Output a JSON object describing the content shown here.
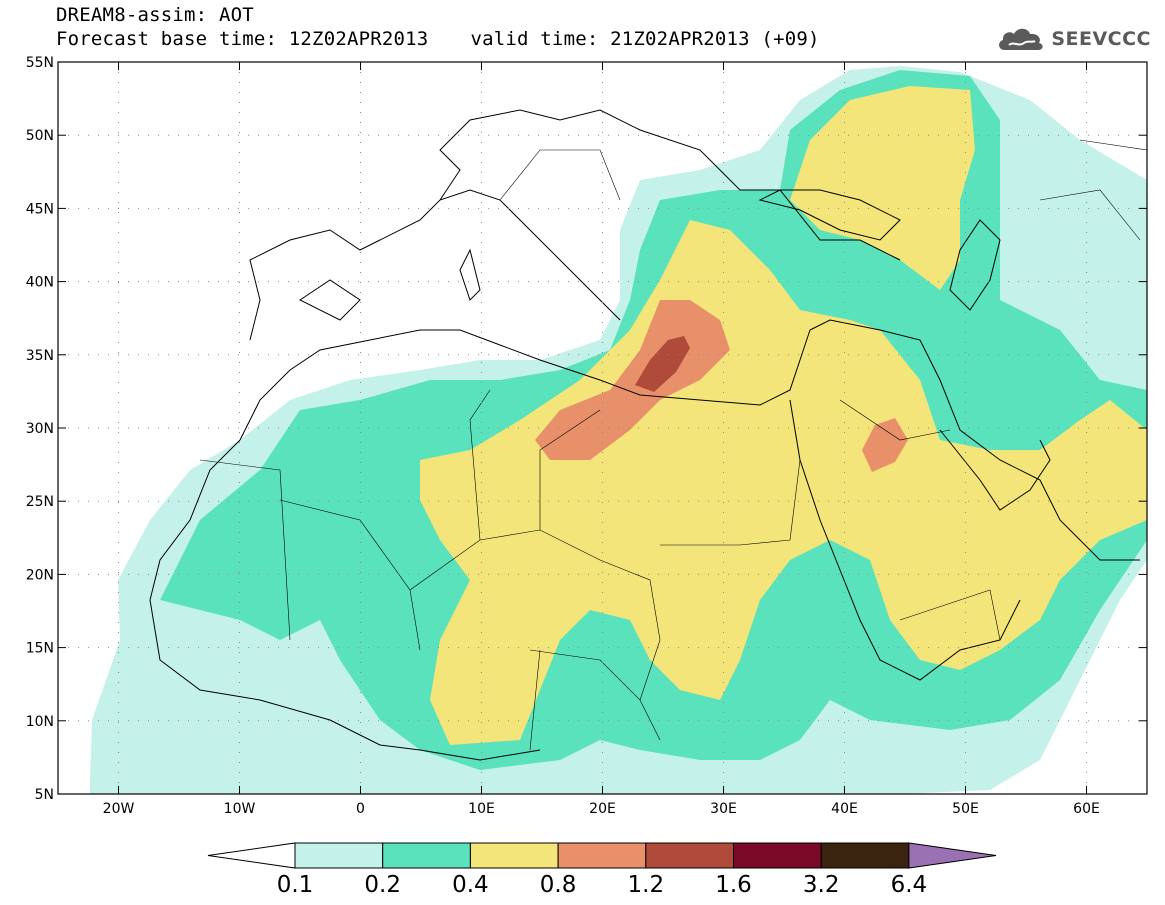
{
  "header": {
    "title_line1": "DREAM8-assim: AOT",
    "base_time": "Forecast base time: 12Z02APR2013",
    "valid_time": "valid time: 21Z02APR2013 (+09)"
  },
  "logo": {
    "text": "SEEVCCC",
    "icon": "cloud-icon",
    "color": "#5a5a5a"
  },
  "map": {
    "lon_range": [
      -25,
      65
    ],
    "lat_range": [
      5,
      55
    ],
    "lat_ticks": [
      {
        "value": 55,
        "label": "55N"
      },
      {
        "value": 50,
        "label": "50N"
      },
      {
        "value": 45,
        "label": "45N"
      },
      {
        "value": 40,
        "label": "40N"
      },
      {
        "value": 35,
        "label": "35N"
      },
      {
        "value": 30,
        "label": "30N"
      },
      {
        "value": 25,
        "label": "25N"
      },
      {
        "value": 20,
        "label": "20N"
      },
      {
        "value": 15,
        "label": "15N"
      },
      {
        "value": 10,
        "label": "10N"
      },
      {
        "value": 5,
        "label": "5N"
      }
    ],
    "lon_ticks": [
      {
        "value": -20,
        "label": "20W"
      },
      {
        "value": -10,
        "label": "10W"
      },
      {
        "value": 0,
        "label": "0"
      },
      {
        "value": 10,
        "label": "10E"
      },
      {
        "value": 20,
        "label": "20E"
      },
      {
        "value": 30,
        "label": "30E"
      },
      {
        "value": 40,
        "label": "40E"
      },
      {
        "value": 50,
        "label": "50E"
      },
      {
        "value": 60,
        "label": "60E"
      }
    ],
    "grid": "dotted",
    "coastline_color": "#000000"
  },
  "legend": {
    "levels": [
      "0.1",
      "0.2",
      "0.4",
      "0.8",
      "1.2",
      "1.6",
      "3.2",
      "6.4"
    ],
    "colors": [
      "#ffffff",
      "#c4f2ea",
      "#5ae2bc",
      "#f4e57a",
      "#e8906a",
      "#b04a3a",
      "#7a0a28",
      "#3a2410",
      "#9a72b4"
    ]
  }
}
